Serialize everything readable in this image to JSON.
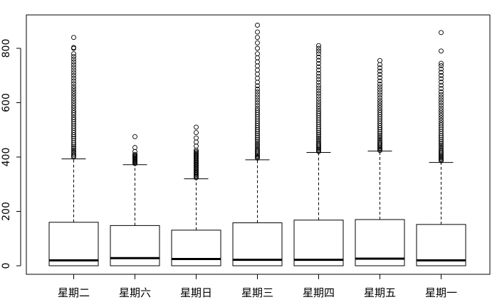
{
  "chart_data": {
    "type": "boxplot",
    "title": "",
    "xlabel": "",
    "ylabel": "",
    "ylim": [
      -30,
      920
    ],
    "yticks": [
      0,
      200,
      400,
      600,
      800
    ],
    "grid": false,
    "categories": [
      "星期二",
      "星期六",
      "星期日",
      "星期三",
      "星期四",
      "星期五",
      "星期一"
    ],
    "boxes": [
      {
        "min": 0,
        "q1": 0,
        "median": 20,
        "q3": 160,
        "whisker_high": 393,
        "outliers": [
          400,
          404,
          409,
          415,
          420,
          426,
          432,
          438,
          445,
          452,
          460,
          468,
          475,
          482,
          490,
          498,
          506,
          514,
          522,
          530,
          538,
          546,
          555,
          563,
          571,
          580,
          588,
          597,
          606,
          615,
          624,
          633,
          642,
          651,
          660,
          670,
          680,
          690,
          700,
          710,
          720,
          730,
          740,
          750,
          760,
          770,
          780,
          800,
          803,
          840
        ]
      },
      {
        "min": 0,
        "q1": 0,
        "median": 28,
        "q3": 148,
        "whisker_high": 372,
        "outliers": [
          376,
          379,
          382,
          385,
          388,
          391,
          394,
          397,
          400,
          403,
          406,
          410,
          420,
          435,
          475
        ]
      },
      {
        "min": 0,
        "q1": 0,
        "median": 25,
        "q3": 131,
        "whisker_high": 320,
        "outliers": [
          324,
          328,
          332,
          336,
          340,
          344,
          348,
          352,
          356,
          360,
          364,
          368,
          372,
          376,
          380,
          384,
          388,
          392,
          396,
          400,
          404,
          408,
          412,
          416,
          420,
          425,
          440,
          455,
          470,
          490,
          510
        ]
      },
      {
        "min": 0,
        "q1": 0,
        "median": 22,
        "q3": 158,
        "whisker_high": 390,
        "outliers": [
          396,
          400,
          404,
          408,
          413,
          418,
          423,
          428,
          434,
          440,
          446,
          452,
          458,
          465,
          472,
          479,
          486,
          493,
          500,
          508,
          516,
          524,
          532,
          540,
          548,
          556,
          564,
          572,
          580,
          590,
          600,
          610,
          620,
          630,
          640,
          650,
          662,
          675,
          690,
          705,
          720,
          735,
          750,
          765,
          780,
          800,
          820,
          840,
          860,
          885
        ]
      },
      {
        "min": 0,
        "q1": 0,
        "median": 22,
        "q3": 168,
        "whisker_high": 417,
        "outliers": [
          420,
          424,
          428,
          432,
          437,
          442,
          447,
          452,
          458,
          464,
          470,
          476,
          483,
          490,
          497,
          504,
          512,
          520,
          528,
          536,
          544,
          552,
          560,
          568,
          577,
          586,
          595,
          604,
          614,
          624,
          634,
          644,
          654,
          664,
          675,
          686,
          697,
          708,
          720,
          732,
          744,
          756,
          768,
          780,
          790,
          800,
          810
        ]
      },
      {
        "min": 0,
        "q1": 0,
        "median": 26,
        "q3": 170,
        "whisker_high": 422,
        "outliers": [
          424,
          428,
          432,
          436,
          441,
          446,
          451,
          456,
          462,
          468,
          474,
          480,
          487,
          494,
          501,
          508,
          516,
          524,
          532,
          540,
          548,
          556,
          564,
          572,
          581,
          590,
          599,
          608,
          618,
          628,
          638,
          648,
          658,
          668,
          680,
          692,
          704,
          716,
          728,
          740,
          755
        ]
      },
      {
        "min": 0,
        "q1": 0,
        "median": 20,
        "q3": 152,
        "whisker_high": 380,
        "outliers": [
          386,
          390,
          394,
          398,
          402,
          406,
          411,
          416,
          421,
          426,
          432,
          438,
          444,
          450,
          457,
          464,
          471,
          478,
          486,
          494,
          502,
          510,
          518,
          526,
          535,
          544,
          553,
          562,
          571,
          580,
          590,
          600,
          610,
          620,
          630,
          640,
          652,
          664,
          676,
          688,
          700,
          712,
          724,
          736,
          745,
          790,
          858
        ]
      }
    ]
  }
}
